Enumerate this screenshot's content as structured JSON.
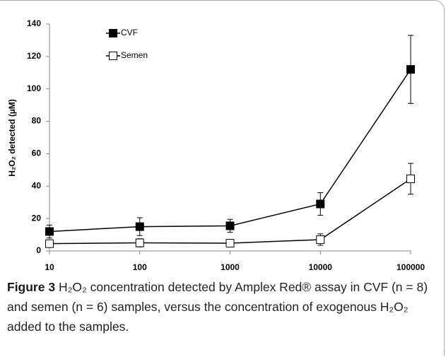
{
  "chart_data": {
    "type": "line",
    "x": [
      10,
      100,
      1000,
      10000,
      100000
    ],
    "xscale": "log",
    "xlim": [
      10,
      100000
    ],
    "xticks": [
      10,
      100,
      1000,
      10000,
      100000
    ],
    "ylim": [
      0,
      140
    ],
    "yticks": [
      0,
      20,
      40,
      60,
      80,
      100,
      120,
      140
    ],
    "ylabel": "H₂O₂ detected (µM)",
    "legend": "upper left",
    "series": [
      {
        "name": "CVF",
        "color": "#000000",
        "marker_fill": "#000000",
        "values": [
          12,
          15,
          15.5,
          29,
          112
        ],
        "errors": [
          4,
          5.5,
          4,
          7,
          21
        ]
      },
      {
        "name": "Semen",
        "color": "#000000",
        "marker_fill": "#ffffff",
        "values": [
          4.5,
          5,
          4.8,
          7,
          44.5
        ],
        "errors": [
          1.5,
          2.5,
          2,
          3.5,
          9.5
        ]
      }
    ],
    "caption": {
      "label": "Figure 3",
      "text": "H₂O₂ concentration detected by Amplex Red® assay in CVF (n = 8) and semen (n = 6) samples, versus the concentration of exogenous H₂O₂ added to the samples."
    }
  }
}
